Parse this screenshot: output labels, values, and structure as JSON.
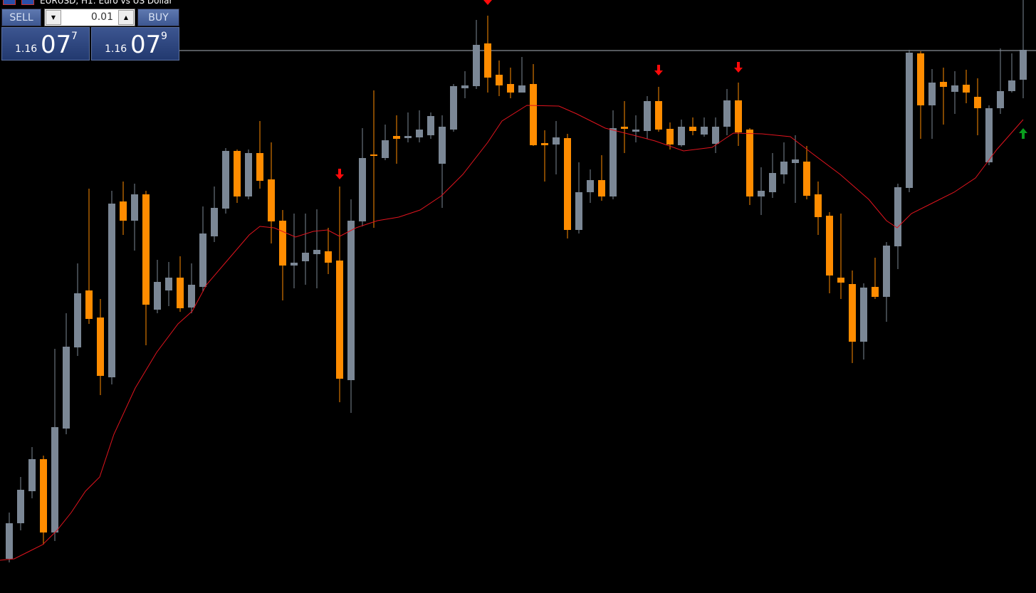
{
  "header": {
    "title": "EURUSD, H1:  Euro vs US Dollar"
  },
  "trade_panel": {
    "sell": "SELL",
    "lot": "0.01",
    "buy": "BUY",
    "bid": {
      "big": "1.16",
      "pips": "07",
      "fraction": "7"
    },
    "ask": {
      "big": "1.16",
      "pips": "07",
      "fraction": "9"
    }
  }
}
